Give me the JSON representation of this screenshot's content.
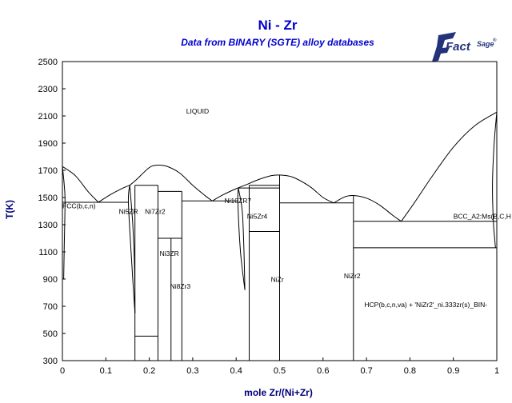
{
  "title": "Ni - Zr",
  "subtitle": "Data from BINARY (SGTE) alloy databases",
  "logo": {
    "text_main": "Fact",
    "text_sup": "Sage",
    "mark": "®",
    "icon": "factsage-logo-icon"
  },
  "chart_data": {
    "type": "phase-diagram",
    "xlabel": "mole Zr/(Ni+Zr)",
    "ylabel": "T(K)",
    "xlim": [
      0,
      1
    ],
    "ylim": [
      300,
      2500
    ],
    "xticks": [
      "0",
      "0.1",
      "0.2",
      "0.3",
      "0.4",
      "0.5",
      "0.6",
      "0.7",
      "0.8",
      "0.9",
      "1"
    ],
    "yticks": [
      "300",
      "500",
      "700",
      "900",
      "1100",
      "1300",
      "1500",
      "1700",
      "1900",
      "2100",
      "2300",
      "2500"
    ],
    "liquidus": [
      [
        0.0,
        1728
      ],
      [
        0.03,
        1660
      ],
      [
        0.06,
        1540
      ],
      [
        0.083,
        1465
      ],
      [
        0.11,
        1520
      ],
      [
        0.14,
        1570
      ],
      [
        0.155,
        1590
      ],
      [
        0.17,
        1630
      ],
      [
        0.2,
        1720
      ],
      [
        0.22,
        1738
      ],
      [
        0.24,
        1730
      ],
      [
        0.27,
        1680
      ],
      [
        0.3,
        1590
      ],
      [
        0.33,
        1510
      ],
      [
        0.345,
        1475
      ],
      [
        0.37,
        1520
      ],
      [
        0.4,
        1565
      ],
      [
        0.42,
        1590
      ],
      [
        0.45,
        1630
      ],
      [
        0.48,
        1660
      ],
      [
        0.5,
        1665
      ],
      [
        0.53,
        1650
      ],
      [
        0.57,
        1580
      ],
      [
        0.6,
        1500
      ],
      [
        0.625,
        1460
      ],
      [
        0.65,
        1505
      ],
      [
        0.67,
        1515
      ],
      [
        0.7,
        1495
      ],
      [
        0.73,
        1445
      ],
      [
        0.76,
        1370
      ],
      [
        0.78,
        1325
      ],
      [
        0.81,
        1460
      ],
      [
        0.85,
        1650
      ],
      [
        0.9,
        1870
      ],
      [
        0.95,
        2030
      ],
      [
        1.0,
        2128
      ]
    ],
    "fcc_solvus": [
      [
        0.0,
        1728
      ],
      [
        0.004,
        1600
      ],
      [
        0.006,
        1465
      ],
      [
        0.004,
        1100
      ],
      [
        0.003,
        900
      ]
    ],
    "bcc_solvus": [
      [
        1.0,
        2128
      ],
      [
        0.994,
        1900
      ],
      [
        0.99,
        1600
      ],
      [
        0.992,
        1325
      ],
      [
        0.995,
        1200
      ],
      [
        0.997,
        1130
      ]
    ],
    "ni5zr_left": [
      [
        0.155,
        1590
      ],
      [
        0.152,
        1460
      ],
      [
        0.16,
        1000
      ],
      [
        0.167,
        650
      ]
    ],
    "ni5zr_right": [
      [
        0.155,
        1590
      ],
      [
        0.162,
        1300
      ],
      [
        0.166,
        1000
      ],
      [
        0.167,
        650
      ]
    ],
    "ni10zr7_left": [
      [
        0.405,
        1570
      ],
      [
        0.404,
        1460
      ],
      [
        0.41,
        1100
      ],
      [
        0.42,
        820
      ]
    ],
    "ni10zr7_right": [
      [
        0.405,
        1570
      ],
      [
        0.414,
        1400
      ],
      [
        0.418,
        1100
      ],
      [
        0.42,
        820
      ]
    ],
    "segments": [
      [
        0.0,
        1465,
        0.152,
        1465
      ],
      [
        0.167,
        1590,
        0.22,
        1590
      ],
      [
        0.22,
        1545,
        0.275,
        1545
      ],
      [
        0.275,
        1475,
        0.405,
        1475
      ],
      [
        0.405,
        1570,
        0.5,
        1570
      ],
      [
        0.43,
        1590,
        0.5,
        1590
      ],
      [
        0.5,
        1460,
        0.67,
        1460
      ],
      [
        0.67,
        1325,
        1.0,
        1325
      ],
      [
        0.67,
        1130,
        1.0,
        1130
      ],
      [
        0.167,
        480,
        0.22,
        480
      ],
      [
        0.22,
        1200,
        0.275,
        1200
      ],
      [
        0.43,
        1250,
        0.5,
        1250
      ],
      [
        0.167,
        300,
        0.167,
        1590
      ],
      [
        0.22,
        300,
        0.22,
        1590
      ],
      [
        0.25,
        300,
        0.25,
        1200
      ],
      [
        0.275,
        300,
        0.275,
        1545
      ],
      [
        0.43,
        300,
        0.43,
        1590
      ],
      [
        0.5,
        300,
        0.5,
        1665
      ],
      [
        0.67,
        300,
        0.67,
        1515
      ]
    ],
    "labels": [
      {
        "text": "LIQUID",
        "x": 0.285,
        "y": 2118
      },
      {
        "text": "FCC(b,c,n)",
        "x": 0.0,
        "y": 1420
      },
      {
        "text": "Ni5ZR",
        "x": 0.13,
        "y": 1380
      },
      {
        "text": "Ni7Zr2",
        "x": 0.19,
        "y": 1380
      },
      {
        "text": "Ni3ZR",
        "x": 0.224,
        "y": 1070
      },
      {
        "text": "Ni8Zr3",
        "x": 0.248,
        "y": 830
      },
      {
        "text": "Ni10ZR7",
        "x": 0.373,
        "y": 1458
      },
      {
        "text": "Ni5Zr4",
        "x": 0.425,
        "y": 1345
      },
      {
        "text": "NiZr",
        "x": 0.48,
        "y": 880
      },
      {
        "text": "NiZr2",
        "x": 0.648,
        "y": 905
      },
      {
        "text": "BCC_A2:Ms(B,C,H",
        "x": 0.9,
        "y": 1345
      },
      {
        "text": "HCP(b,c,n,va) + 'NiZr2'_ni.333zr(s)_BIN-",
        "x": 0.695,
        "y": 695
      }
    ]
  }
}
